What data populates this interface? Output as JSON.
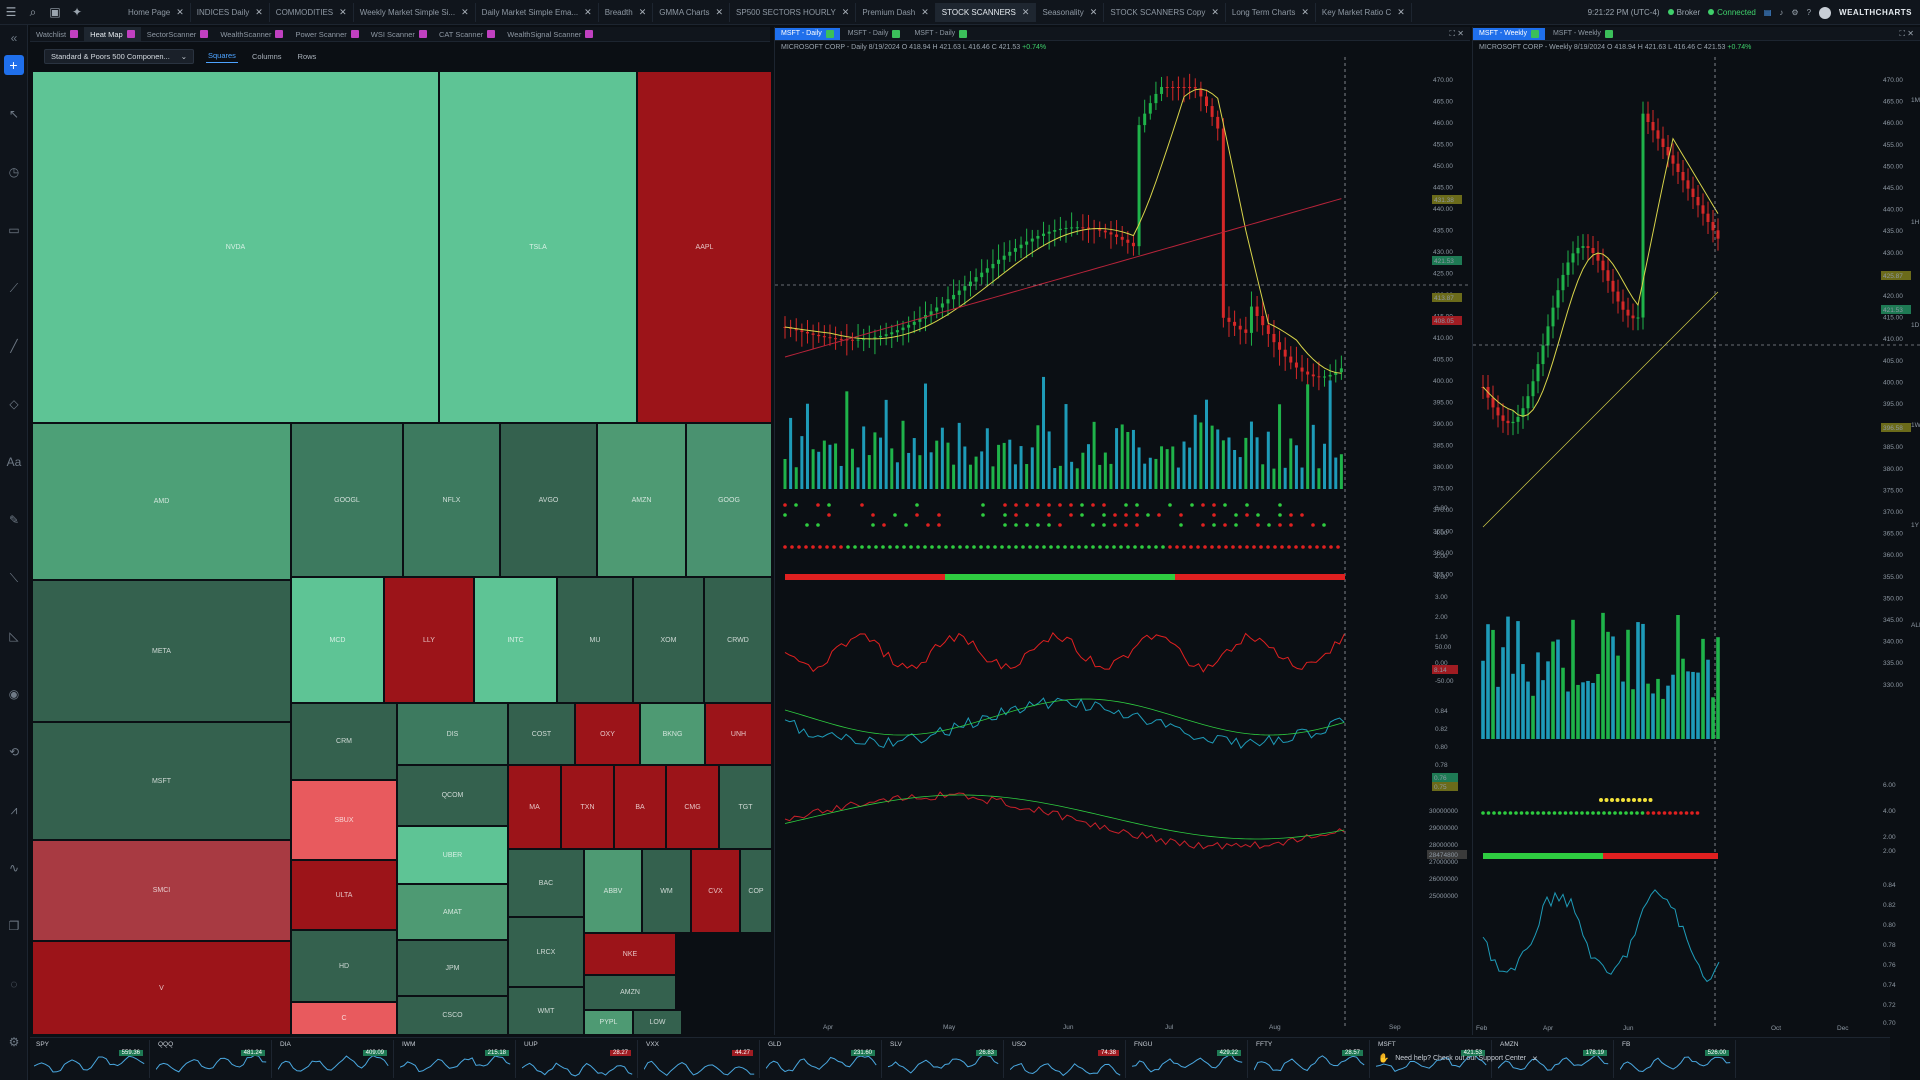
{
  "topbar": {
    "tabs": [
      {
        "label": "Home Page",
        "active": false
      },
      {
        "label": "INDICES Daily",
        "active": false
      },
      {
        "label": "COMMODITIES",
        "active": false
      },
      {
        "label": "Weekly Market Simple Si...",
        "active": false
      },
      {
        "label": "Daily Market Simple Ema...",
        "active": false
      },
      {
        "label": "Breadth",
        "active": false
      },
      {
        "label": "GMMA Charts",
        "active": false
      },
      {
        "label": "SP500 SECTORS HOURLY",
        "active": false
      },
      {
        "label": "Premium Dash",
        "active": false
      },
      {
        "label": "STOCK SCANNERS",
        "active": true
      },
      {
        "label": "Seasonality",
        "active": false
      },
      {
        "label": "STOCK SCANNERS Copy",
        "active": false
      },
      {
        "label": "Long Term Charts",
        "active": false
      },
      {
        "label": "Key Market Ratio C",
        "active": false
      }
    ],
    "time": "9:21:22 PM (UTC-4)",
    "broker": "Broker",
    "connected": "Connected",
    "brand": "WEALTHCHARTS"
  },
  "heatmap_panel": {
    "tabs": [
      {
        "label": "Watchlist",
        "active": false
      },
      {
        "label": "Heat Map",
        "active": true
      },
      {
        "label": "SectorScanner",
        "active": false
      },
      {
        "label": "WealthScanner",
        "active": false
      },
      {
        "label": "Power Scanner",
        "active": false
      },
      {
        "label": "WSI Scanner",
        "active": false
      },
      {
        "label": "CAT Scanner",
        "active": false
      },
      {
        "label": "WealthSignal Scanner",
        "active": false
      }
    ],
    "select_value": "Standard & Poors 500 Componen...",
    "layout_options": [
      "Squares",
      "Columns",
      "Rows"
    ],
    "active_layout": "Squares",
    "cells": [
      {
        "t": "NVDA",
        "c": "#5ec495"
      },
      {
        "t": "TSLA",
        "c": "#5ec495"
      },
      {
        "t": "AAPL",
        "c": "#9c1419"
      },
      {
        "t": "AMD",
        "c": "#4da077"
      },
      {
        "t": "GOOGL",
        "c": "#3d7a5f"
      },
      {
        "t": "NFLX",
        "c": "#3d7a5f"
      },
      {
        "t": "AVGO",
        "c": "#34614e"
      },
      {
        "t": "AMZN",
        "c": "#4e9a73"
      },
      {
        "t": "GOOG",
        "c": "#4a9270"
      },
      {
        "t": "META",
        "c": "#34614e"
      },
      {
        "t": "MCD",
        "c": "#5ec495"
      },
      {
        "t": "LLY",
        "c": "#9c1419"
      },
      {
        "t": "INTC",
        "c": "#5ec495"
      },
      {
        "t": "MU",
        "c": "#34614e"
      },
      {
        "t": "XOM",
        "c": "#34614e"
      },
      {
        "t": "CRWD",
        "c": "#34614e"
      },
      {
        "t": "MSFT",
        "c": "#34614e"
      },
      {
        "t": "CRM",
        "c": "#34614e"
      },
      {
        "t": "DIS",
        "c": "#3d7a5f"
      },
      {
        "t": "COST",
        "c": "#34614e"
      },
      {
        "t": "OXY",
        "c": "#9c1419"
      },
      {
        "t": "BKNG",
        "c": "#4e9a73"
      },
      {
        "t": "UNH",
        "c": "#9c1419"
      },
      {
        "t": "SMCI",
        "c": "#a83a42"
      },
      {
        "t": "SBUX",
        "c": "#e85a5e"
      },
      {
        "t": "QCOM",
        "c": "#34614e"
      },
      {
        "t": "MA",
        "c": "#9c1419"
      },
      {
        "t": "TXN",
        "c": "#9c1419"
      },
      {
        "t": "BA",
        "c": "#9c1419"
      },
      {
        "t": "CMG",
        "c": "#9c1419"
      },
      {
        "t": "TGT",
        "c": "#34614e"
      },
      {
        "t": "ULTA",
        "c": "#9c1419"
      },
      {
        "t": "UBER",
        "c": "#5ec495"
      },
      {
        "t": "AMAT",
        "c": "#4e9a73"
      },
      {
        "t": "BAC",
        "c": "#34614e"
      },
      {
        "t": "ABBV",
        "c": "#4e9a73"
      },
      {
        "t": "WM",
        "c": "#34614e"
      },
      {
        "t": "CVX",
        "c": "#9c1419"
      },
      {
        "t": "COP",
        "c": "#34614e"
      },
      {
        "t": "HD",
        "c": "#34614e"
      },
      {
        "t": "JPM",
        "c": "#34614e"
      },
      {
        "t": "LRCX",
        "c": "#34614e"
      },
      {
        "t": "NKE",
        "c": "#9c1419"
      },
      {
        "t": "AMZN",
        "c": "#34614e"
      },
      {
        "t": "V",
        "c": "#9c1419"
      },
      {
        "t": "C",
        "c": "#e85a5e"
      },
      {
        "t": "CSCO",
        "c": "#34614e"
      },
      {
        "t": "WMT",
        "c": "#34614e"
      },
      {
        "t": "PYPL",
        "c": "#4e9a73"
      },
      {
        "t": "LOW",
        "c": "#34614e"
      }
    ]
  },
  "daily_chart": {
    "tabs": [
      {
        "label": "MSFT - Daily",
        "active": true
      },
      {
        "label": "MSFT - Daily",
        "active": false
      },
      {
        "label": "MSFT - Daily",
        "active": false
      }
    ],
    "header": "MICROSOFT CORP - Daily 8/19/2024",
    "ohlc": "O 418.94 H 421.63 L 416.46 C 421.53",
    "change": "+0.74%",
    "price_ticks": [
      "470.00",
      "465.00",
      "460.00",
      "455.00",
      "450.00",
      "445.00",
      "440.00",
      "435.00",
      "430.00",
      "425.00",
      "420.00",
      "415.00",
      "410.00",
      "405.00",
      "400.00",
      "395.00",
      "390.00",
      "385.00",
      "380.00",
      "375.00",
      "370.00",
      "365.00",
      "360.00",
      "355.00"
    ],
    "price_tags": {
      "ma": "431.38",
      "last": "421.53",
      "cursor": "413.87",
      "low": "408.05"
    },
    "month_labels": [
      "Apr",
      "May",
      "Jun",
      "Jul",
      "Aug",
      "Sep"
    ],
    "osc_ticks": [
      "6.00",
      "4.00",
      "2.00",
      "4.00",
      "3.00",
      "2.00",
      "1.00"
    ],
    "osc2_ticks": [
      "50.00",
      "0.00",
      "-50.00"
    ],
    "osc2_tag": "8.14",
    "osc3_ticks": [
      "0.84",
      "0.82",
      "0.80",
      "0.78"
    ],
    "osc3_tags": [
      "0.76",
      "0.75"
    ],
    "osc4_ticks": [
      "30000000",
      "29000000",
      "28000000",
      "27000000",
      "26000000",
      "25000000",
      "28474800"
    ]
  },
  "weekly_chart": {
    "tabs": [
      {
        "label": "MSFT - Weekly",
        "active": true
      },
      {
        "label": "MSFT - Weekly",
        "active": false
      }
    ],
    "header": "MICROSOFT CORP - Weekly 8/19/2024",
    "ohlc": "O 418.94 H 421.63 L 416.46 C 421.53",
    "change": "+0.74%",
    "price_ticks": [
      "470.00",
      "465.00",
      "460.00",
      "455.00",
      "450.00",
      "445.00",
      "440.00",
      "435.00",
      "430.00",
      "425.00",
      "420.00",
      "415.00",
      "410.00",
      "405.00",
      "400.00",
      "395.00",
      "390.00",
      "385.00",
      "380.00",
      "375.00",
      "370.00",
      "365.00",
      "360.00",
      "355.00",
      "350.00",
      "345.00",
      "340.00",
      "335.00",
      "330.00"
    ],
    "price_tags": [
      "425.87",
      "421.53",
      "396.58"
    ],
    "tf_letters": [
      "1M",
      "1H",
      "1D",
      "1W",
      "1Y",
      "ALL"
    ],
    "month_labels": [
      "Feb",
      "Apr",
      "Jun",
      "Oct",
      "Dec"
    ],
    "osc_ticks": [
      "6.00",
      "4.00",
      "2.00",
      "2.00"
    ],
    "osc3_ticks": [
      "0.84",
      "0.82",
      "0.80",
      "0.78",
      "0.76",
      "0.74",
      "0.72",
      "0.70"
    ]
  },
  "bottom_strip": {
    "tickers": [
      {
        "sym": "SPY",
        "px": "559.36",
        "up": true
      },
      {
        "sym": "QQQ",
        "px": "481.24",
        "up": true
      },
      {
        "sym": "DIA",
        "px": "409.09",
        "up": true
      },
      {
        "sym": "IWM",
        "px": "215.18",
        "up": true
      },
      {
        "sym": "UUP",
        "px": "28.27",
        "up": false
      },
      {
        "sym": "VXX",
        "px": "44.27",
        "up": false
      },
      {
        "sym": "GLD",
        "px": "231.60",
        "up": true
      },
      {
        "sym": "SLV",
        "px": "26.83",
        "up": true
      },
      {
        "sym": "USO",
        "px": "74.38",
        "up": false
      },
      {
        "sym": "FNGU",
        "px": "429.22",
        "up": true
      },
      {
        "sym": "FFTY",
        "px": "28.57",
        "up": true
      },
      {
        "sym": "MSFT",
        "px": "421.53",
        "up": true
      },
      {
        "sym": "AMZN",
        "px": "178.19",
        "up": true
      },
      {
        "sym": "FB",
        "px": "526.00",
        "up": true
      }
    ],
    "help_text": "Need help? Check out our Support Center"
  }
}
